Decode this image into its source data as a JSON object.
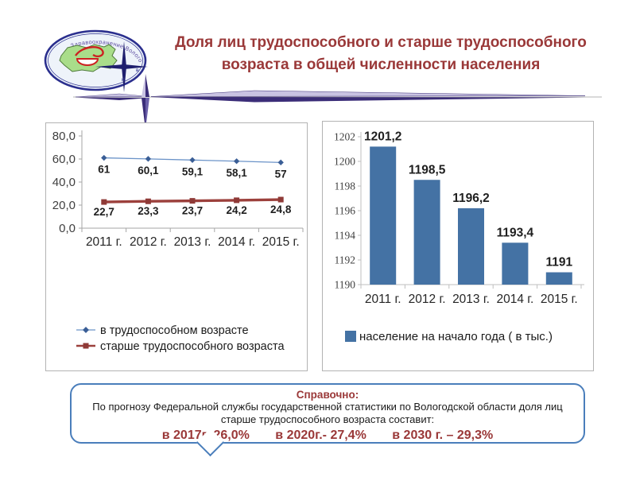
{
  "slide": {
    "title_line1": "Доля лиц трудоспособного и старше трудоспособного",
    "title_line2": "возраста в общей численности населения"
  },
  "logo": {
    "arc_text": "Здравоохранение Вологодской области",
    "compass_letter_east": "в",
    "compass_letter_south": "ю"
  },
  "colors": {
    "title_red": "#9a3838",
    "note_border_blue": "#4a7ebb",
    "divider_dark_purple": "#3b2d78",
    "divider_light_purple": "#c9c3e2",
    "bar_blue": "#4472a4",
    "line_blue": "#6b93c8",
    "line_red": "#9c403c"
  },
  "chart_data": [
    {
      "type": "line",
      "title": "",
      "xlabel": "",
      "ylabel": "",
      "categories": [
        "2011 г.",
        "2012 г.",
        "2013 г.",
        "2014 г.",
        "2015 г."
      ],
      "series": [
        {
          "name": "в трудоспособном возрасте",
          "values": [
            61,
            60.1,
            59.1,
            58.1,
            57
          ],
          "labels": [
            "61",
            "60,1",
            "59,1",
            "58,1",
            "57"
          ],
          "color": "#6b93c8",
          "marker_color": "#3a5e96",
          "marker": "diamond",
          "stroke_width": 1.3,
          "label_dy": 19
        },
        {
          "name": "старше трудоспособного возраста",
          "values": [
            22.7,
            23.3,
            23.7,
            24.2,
            24.8
          ],
          "labels": [
            "22,7",
            "23,3",
            "23,7",
            "24,2",
            "24,8"
          ],
          "color": "#9c403c",
          "marker_color": "#8f3a37",
          "marker": "square",
          "stroke_width": 3.4,
          "label_dy": 17
        }
      ],
      "ylim": [
        0,
        80
      ],
      "ytick_values": [
        0,
        20,
        40,
        60,
        80
      ],
      "ytick_labels": [
        "0,0",
        "20,0",
        "40,0",
        "60,0",
        "80,0"
      ],
      "grid": false,
      "legend_position": "bottom-left"
    },
    {
      "type": "bar",
      "title": "",
      "xlabel": "",
      "ylabel": "",
      "categories": [
        "2011 г.",
        "2012 г.",
        "2013 г.",
        "2014 г.",
        "2015 г."
      ],
      "series": [
        {
          "name": "население на начало года ( в тыс.)",
          "values": [
            1201.2,
            1198.5,
            1196.2,
            1193.4,
            1191
          ],
          "labels": [
            "1201,2",
            "1198,5",
            "1196,2",
            "1193,4",
            "1191"
          ],
          "color": "#4472a4"
        }
      ],
      "ylim": [
        1190,
        1202
      ],
      "ytick_values": [
        1190,
        1192,
        1194,
        1196,
        1198,
        1200,
        1202
      ],
      "ytick_labels": [
        "1190",
        "1192",
        "1194",
        "1196",
        "1198",
        "1200",
        "1202"
      ],
      "grid": false,
      "legend_position": "bottom"
    }
  ],
  "note_box": {
    "heading": "Справочно:",
    "body": "По прогнозу Федеральной службы государственной статистики по Вологодской области доля лиц старше трудоспособного возраста составит:",
    "forecast": [
      "в 2017г.-26,0%",
      "в 2020г.- 27,4%",
      "в 2030 г. – 29,3%"
    ]
  }
}
